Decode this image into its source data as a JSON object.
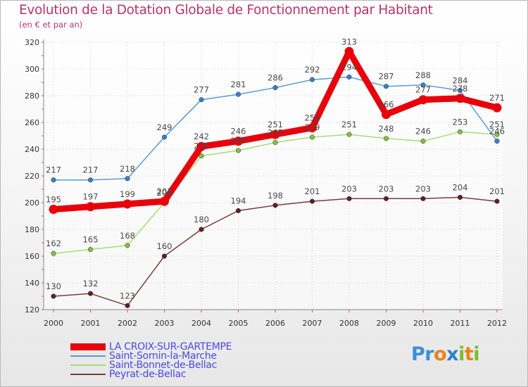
{
  "header": {
    "title": "Evolution de la Dotation Globale de Fonctionnement par Habitant",
    "subtitle": "(en € et par an)"
  },
  "brand": {
    "parts": [
      {
        "text": "Pr",
        "color": "#3a8fd8"
      },
      {
        "text": "o",
        "color": "#e8821e"
      },
      {
        "text": "x",
        "color": "#2e7fd1"
      },
      {
        "text": "i",
        "color": "#7bbd2e"
      },
      {
        "text": "t",
        "color": "#e8821e"
      },
      {
        "text": "i",
        "color": "#7bbd2e"
      }
    ]
  },
  "chart_data": {
    "type": "line",
    "title": "Evolution de la Dotation Globale de Fonctionnement par Habitant",
    "subtitle": "(en € et par an)",
    "xlabel": "",
    "ylabel": "",
    "x": [
      "2000",
      "2001",
      "2002",
      "2003",
      "2004",
      "2005",
      "2006",
      "2007",
      "2008",
      "2009",
      "2010",
      "2011",
      "2012"
    ],
    "ylim": [
      120,
      320
    ],
    "yticks": [
      120,
      140,
      160,
      180,
      200,
      220,
      240,
      260,
      280,
      300,
      320
    ],
    "grid": true,
    "legend_position": "bottom-left",
    "series": [
      {
        "name": "Saint-Sornin-la-Marche",
        "color": "#5b9bd5",
        "marker": "#3a7fc2",
        "emphasis": false,
        "values": [
          217,
          217,
          218,
          249,
          277,
          281,
          286,
          292,
          294,
          287,
          288,
          284,
          246
        ]
      },
      {
        "name": "Saint-Bonnet-de-Bellac",
        "color": "#a9dc7a",
        "marker": "#7ec23a",
        "emphasis": false,
        "values": [
          162,
          165,
          168,
          200,
          235,
          239,
          245,
          249,
          251,
          248,
          246,
          253,
          251
        ]
      },
      {
        "name": "Peyrat-de-Bellac",
        "color": "#7a3d3d",
        "marker": "#5e2020",
        "emphasis": false,
        "values": [
          130,
          132,
          123,
          160,
          180,
          194,
          198,
          201,
          203,
          203,
          203,
          204,
          201
        ]
      },
      {
        "name": "LA CROIX-SUR-GARTEMPE",
        "color": "#e8000b",
        "marker": "#e8000b",
        "emphasis": true,
        "values": [
          195,
          197,
          199,
          201,
          242,
          246,
          251,
          256,
          313,
          266,
          277,
          278,
          271
        ]
      }
    ],
    "legend_order": [
      "LA CROIX-SUR-GARTEMPE",
      "Saint-Sornin-la-Marche",
      "Saint-Bonnet-de-Bellac",
      "Peyrat-de-Bellac"
    ]
  }
}
